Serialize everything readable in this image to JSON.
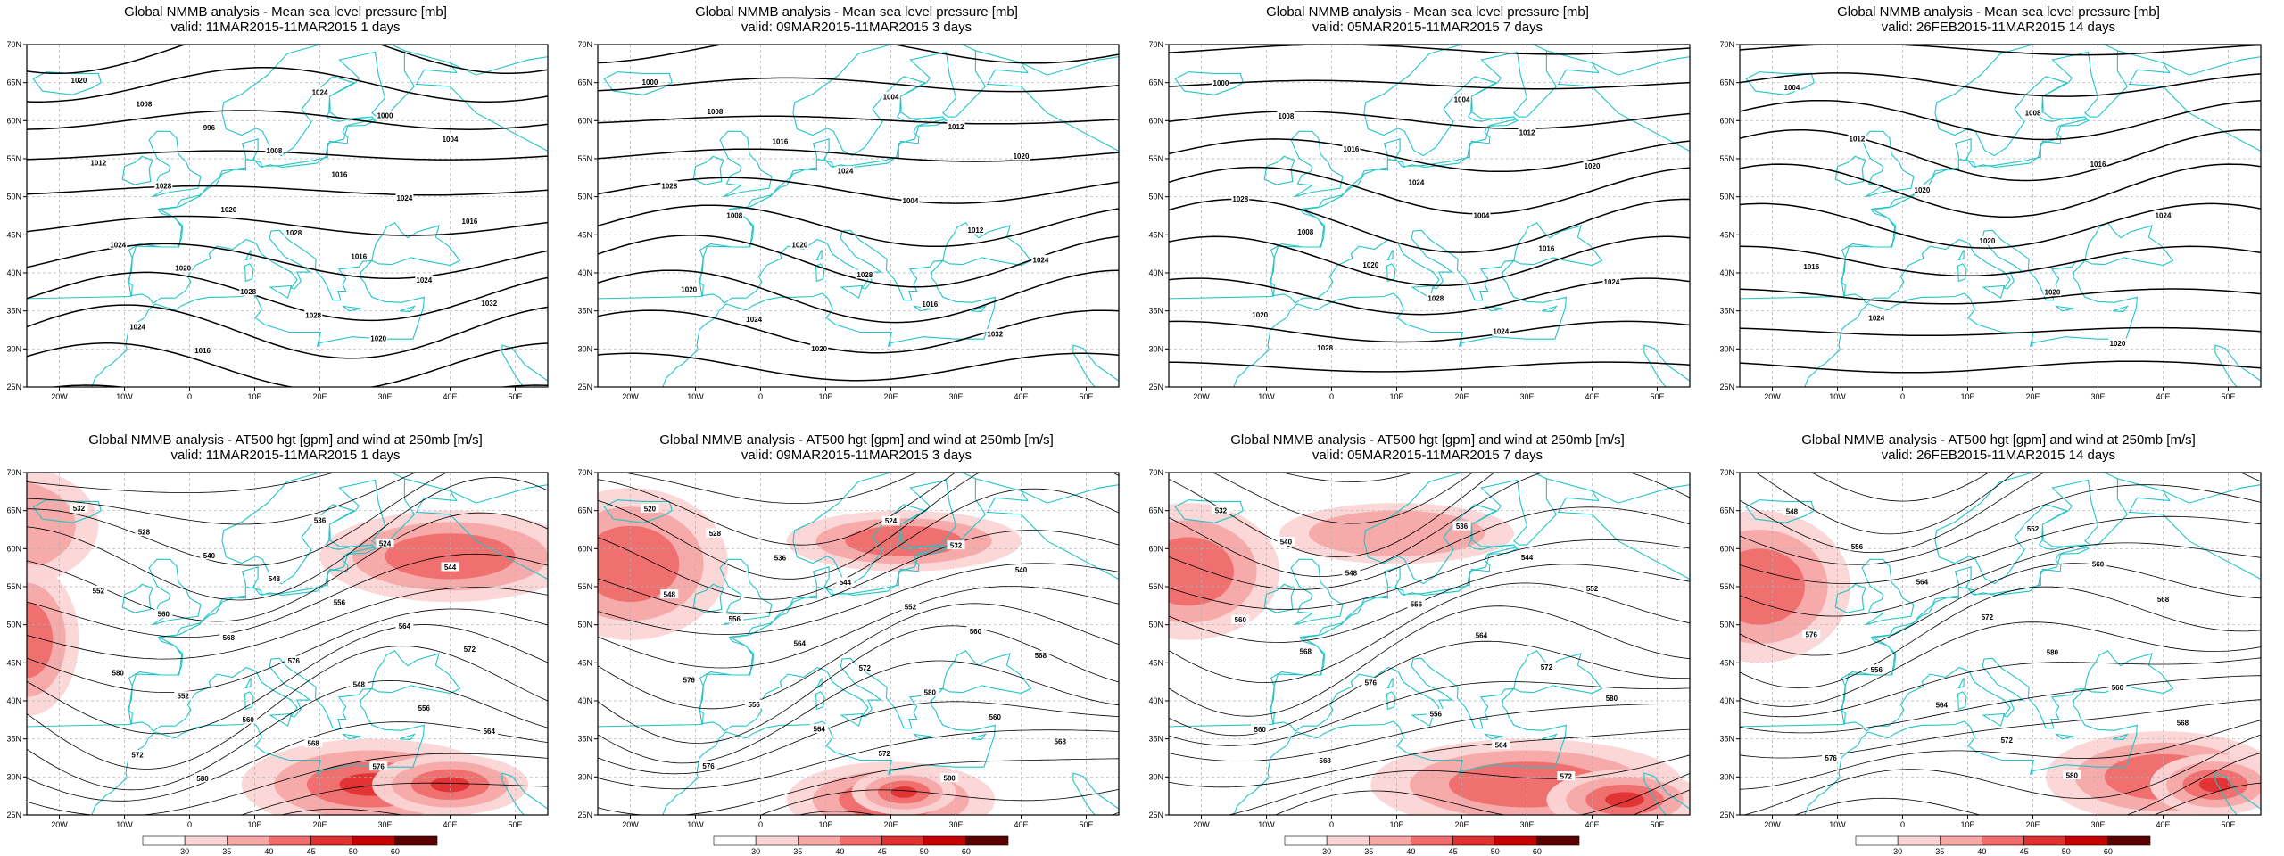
{
  "axes": {
    "lon_labels": [
      "20W",
      "10W",
      "0",
      "10E",
      "20E",
      "30E",
      "40E",
      "50E"
    ],
    "lat_labels": [
      "70N",
      "65N",
      "60N",
      "55N",
      "50N",
      "45N",
      "40N",
      "35N",
      "30N",
      "25N"
    ],
    "lon_range": [
      -25,
      55
    ],
    "lat_range": [
      25,
      70
    ]
  },
  "colors": {
    "coast": "#22c4c8",
    "contour": "#000000",
    "grid": "#b0b0b0",
    "wind_shades": [
      "#fbd5d5",
      "#f6a8a8",
      "#ef6d6d",
      "#e03030",
      "#c40000",
      "#5a0000"
    ]
  },
  "wind_scale": {
    "labels": [
      "30",
      "35",
      "40",
      "45",
      "50",
      "60"
    ]
  },
  "panels": [
    {
      "kind": "mslp",
      "title": "Global NMMB analysis - Mean sea level pressure [mb]",
      "subtitle": "valid: 11MAR2015-11MAR2015  1 days",
      "contour_labels": [
        "1020",
        "1024",
        "1008",
        "1000",
        "996",
        "1004",
        "1008",
        "1012",
        "1016",
        "1028",
        "1024",
        "1020",
        "1016",
        "1028",
        "1024",
        "1016",
        "1020",
        "1024",
        "1028",
        "1032",
        "1028",
        "1024",
        "1020",
        "1016"
      ]
    },
    {
      "kind": "mslp",
      "title": "Global NMMB analysis - Mean sea level pressure [mb]",
      "subtitle": "valid: 09MAR2015-11MAR2015  3 days",
      "contour_labels": [
        "1000",
        "1004",
        "1008",
        "1012",
        "1016",
        "1020",
        "1024",
        "1028",
        "1004",
        "1008",
        "1012",
        "1020",
        "1024",
        "1028",
        "1020",
        "1016",
        "1024",
        "1032",
        "1020"
      ]
    },
    {
      "kind": "mslp",
      "title": "Global NMMB analysis - Mean sea level pressure [mb]",
      "subtitle": "valid: 05MAR2015-11MAR2015  7 days",
      "contour_labels": [
        "1000",
        "1004",
        "1008",
        "1012",
        "1016",
        "1020",
        "1024",
        "1028",
        "1004",
        "1008",
        "1016",
        "1020",
        "1024",
        "1028",
        "1020",
        "1024",
        "1028"
      ]
    },
    {
      "kind": "mslp",
      "title": "Global NMMB analysis - Mean sea level pressure [mb]",
      "subtitle": "valid: 26FEB2015-11MAR2015  14 days",
      "contour_labels": [
        "1004",
        "1008",
        "1012",
        "1016",
        "1020",
        "1024",
        "1020",
        "1016",
        "1020",
        "1024",
        "1020"
      ]
    },
    {
      "kind": "z500",
      "title": "Global NMMB analysis - AT500 hgt [gpm] and wind at 250mb [m/s]",
      "subtitle": "valid: 11MAR2015-11MAR2015  1 days",
      "contour_labels": [
        "532",
        "536",
        "528",
        "524",
        "540",
        "544",
        "548",
        "552",
        "556",
        "560",
        "564",
        "568",
        "572",
        "576",
        "580",
        "548",
        "552",
        "556",
        "560",
        "564",
        "568",
        "572",
        "576",
        "580"
      ]
    },
    {
      "kind": "z500",
      "title": "Global NMMB analysis - AT500 hgt [gpm] and wind at 250mb [m/s]",
      "subtitle": "valid: 09MAR2015-11MAR2015  3 days",
      "contour_labels": [
        "520",
        "524",
        "528",
        "532",
        "536",
        "540",
        "544",
        "548",
        "552",
        "556",
        "560",
        "564",
        "568",
        "572",
        "576",
        "580",
        "556",
        "560",
        "564",
        "568",
        "572",
        "576",
        "580"
      ]
    },
    {
      "kind": "z500",
      "title": "Global NMMB analysis - AT500 hgt [gpm] and wind at 250mb [m/s]",
      "subtitle": "valid: 05MAR2015-11MAR2015  7 days",
      "contour_labels": [
        "532",
        "536",
        "540",
        "544",
        "548",
        "552",
        "556",
        "560",
        "564",
        "568",
        "572",
        "576",
        "580",
        "556",
        "560",
        "564",
        "568",
        "572"
      ]
    },
    {
      "kind": "z500",
      "title": "Global NMMB analysis - AT500 hgt [gpm] and wind at 250mb [m/s]",
      "subtitle": "valid: 26FEB2015-11MAR2015  14 days",
      "contour_labels": [
        "548",
        "552",
        "556",
        "560",
        "564",
        "568",
        "572",
        "576",
        "580",
        "556",
        "560",
        "564",
        "568",
        "572",
        "576",
        "580"
      ]
    }
  ]
}
